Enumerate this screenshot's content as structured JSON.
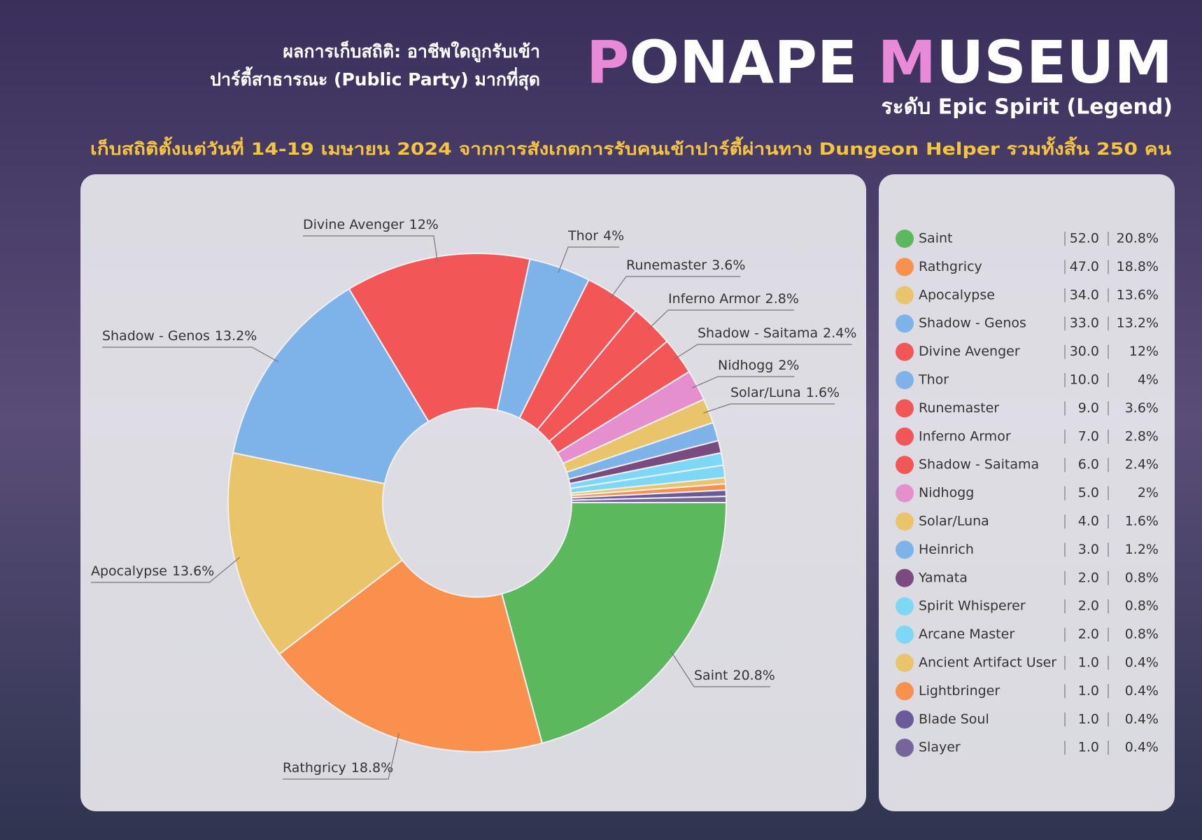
{
  "chart_data": {
    "type": "donut",
    "title_lines": [
      "ผลการเก็บสถิติ: อาชีพใดถูกรับเข้า",
      "ปาร์ตี้สาธารณะ (Public Party) มากที่สุด"
    ],
    "title": "PONAPE MUSEUM",
    "subtitle": "ระดับ Epic Spirit (Legend)",
    "note": "เก็บสถิติตั้งแต่วันที่ 14-19 เมษายน 2024 จากการสังเกตการรับคนเข้าปาร์ตี้ผ่านทาง Dungeon Helper รวมทั้งสิ้น 250 คน",
    "categories": [
      "Saint",
      "Rathgricy",
      "Apocalypse",
      "Shadow - Genos",
      "Divine Avenger",
      "Thor",
      "Runemaster",
      "Inferno Armor",
      "Shadow - Saitama",
      "Nidhogg",
      "Solar/Luna",
      "Heinrich",
      "Yamata",
      "Spirit Whisperer",
      "Arcane Master",
      "Ancient Artifact User",
      "Lightbringer",
      "Blade Soul",
      "Slayer"
    ],
    "values": [
      52,
      47,
      34,
      33,
      30,
      10,
      9,
      7,
      6,
      5,
      4,
      3,
      2,
      2,
      2,
      1,
      1,
      1,
      1
    ],
    "value_labels": [
      "52.0",
      "47.0",
      "34.0",
      "33.0",
      "30.0",
      "10.0",
      "9.0",
      "7.0",
      "6.0",
      "5.0",
      "4.0",
      "3.0",
      "2.0",
      "2.0",
      "2.0",
      "1.0",
      "1.0",
      "1.0",
      "1.0"
    ],
    "percents": [
      20.8,
      18.8,
      13.6,
      13.2,
      12,
      4,
      3.6,
      2.8,
      2.4,
      2,
      1.6,
      1.2,
      0.8,
      0.8,
      0.8,
      0.4,
      0.4,
      0.4,
      0.4
    ],
    "percent_labels": [
      "20.8%",
      "18.8%",
      "13.6%",
      "13.2%",
      "12%",
      "4%",
      "3.6%",
      "2.8%",
      "2.4%",
      "2%",
      "1.6%",
      "1.2%",
      "0.8%",
      "0.8%",
      "0.8%",
      "0.4%",
      "0.4%",
      "0.4%",
      "0.4%"
    ],
    "colors": [
      "#5cb85c",
      "#f9904e",
      "#e9c46a",
      "#7eb3ea",
      "#f25656",
      "#7eb3ea",
      "#f25656",
      "#f25656",
      "#f25656",
      "#e68fcf",
      "#e9c46a",
      "#7eb3ea",
      "#7b4a7f",
      "#7dd8f5",
      "#7dd8f5",
      "#e9c46a",
      "#f9904e",
      "#6a5a9a",
      "#76659a"
    ]
  }
}
